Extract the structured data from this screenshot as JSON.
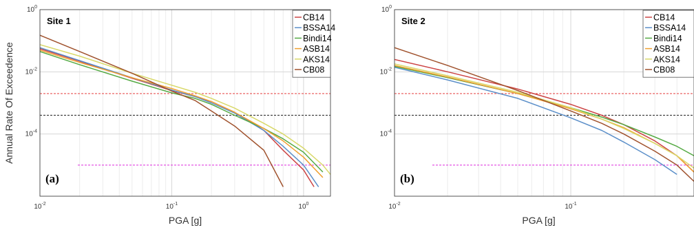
{
  "chart_data": [
    {
      "type": "line",
      "panel_label": "(a)",
      "title": "Site 1",
      "xlabel": "PGA [g]",
      "ylabel": "Annual Rate Of Exceedence",
      "x_scale": "log",
      "y_scale": "log",
      "xlim": [
        0.01,
        1.6
      ],
      "ylim": [
        1e-06,
        1
      ],
      "x_ticks": [
        "10^-2",
        "10^-1",
        "10^0"
      ],
      "y_ticks": [
        "10^-4",
        "10^-2",
        "10^0"
      ],
      "grid": true,
      "legend": "top-right",
      "series": [
        {
          "name": "CB14",
          "color": "#cc4444",
          "points": [
            [
              0.01,
              0.055
            ],
            [
              0.02,
              0.022
            ],
            [
              0.05,
              0.0062
            ],
            [
              0.1,
              0.0025
            ],
            [
              0.15,
              0.0016
            ],
            [
              0.2,
              0.0011
            ],
            [
              0.3,
              0.0005
            ],
            [
              0.5,
              0.00013
            ],
            [
              0.7,
              3e-05
            ],
            [
              1.0,
              7e-06
            ],
            [
              1.2,
              2e-06
            ]
          ]
        },
        {
          "name": "BSSA14",
          "color": "#5b8fc9",
          "points": [
            [
              0.01,
              0.06
            ],
            [
              0.02,
              0.023
            ],
            [
              0.05,
              0.0065
            ],
            [
              0.1,
              0.0026
            ],
            [
              0.15,
              0.0016
            ],
            [
              0.2,
              0.001
            ],
            [
              0.3,
              0.00047
            ],
            [
              0.5,
              0.00013
            ],
            [
              0.7,
              4e-05
            ],
            [
              1.0,
              1e-05
            ],
            [
              1.3,
              2e-06
            ]
          ]
        },
        {
          "name": "Bindi14",
          "color": "#55aa44",
          "points": [
            [
              0.01,
              0.045
            ],
            [
              0.02,
              0.017
            ],
            [
              0.05,
              0.005
            ],
            [
              0.1,
              0.0021
            ],
            [
              0.15,
              0.0014
            ],
            [
              0.2,
              0.0009
            ],
            [
              0.3,
              0.0004
            ],
            [
              0.5,
              0.00015
            ],
            [
              0.7,
              7e-05
            ],
            [
              1.0,
              2.6e-05
            ],
            [
              1.4,
              6e-06
            ]
          ]
        },
        {
          "name": "ASB14",
          "color": "#f0a030",
          "points": [
            [
              0.01,
              0.05
            ],
            [
              0.02,
              0.02
            ],
            [
              0.05,
              0.0065
            ],
            [
              0.1,
              0.0029
            ],
            [
              0.15,
              0.0017
            ],
            [
              0.2,
              0.0011
            ],
            [
              0.3,
              0.0005
            ],
            [
              0.5,
              0.00015
            ],
            [
              0.7,
              6e-05
            ],
            [
              1.0,
              1.8e-05
            ],
            [
              1.4,
              4e-06
            ]
          ]
        },
        {
          "name": "AKS14",
          "color": "#d9d96a",
          "points": [
            [
              0.01,
              0.075
            ],
            [
              0.02,
              0.032
            ],
            [
              0.05,
              0.009
            ],
            [
              0.1,
              0.0037
            ],
            [
              0.15,
              0.0022
            ],
            [
              0.2,
              0.0014
            ],
            [
              0.3,
              0.00068
            ],
            [
              0.5,
              0.00022
            ],
            [
              0.7,
              0.0001
            ],
            [
              1.0,
              3.5e-05
            ],
            [
              1.4,
              1e-05
            ],
            [
              1.6,
              5e-06
            ]
          ]
        },
        {
          "name": "CB08",
          "color": "#a0522d",
          "points": [
            [
              0.01,
              0.15
            ],
            [
              0.02,
              0.045
            ],
            [
              0.05,
              0.009
            ],
            [
              0.1,
              0.0024
            ],
            [
              0.15,
              0.0012
            ],
            [
              0.2,
              0.00055
            ],
            [
              0.3,
              0.00018
            ],
            [
              0.5,
              3e-05
            ],
            [
              0.7,
              2e-06
            ]
          ]
        }
      ],
      "reference_lines": [
        {
          "y": 0.002,
          "color": "#e85050"
        },
        {
          "y": 0.0004,
          "color": "#333333"
        },
        {
          "y": 1e-05,
          "color": "#e040e0"
        }
      ]
    },
    {
      "type": "line",
      "panel_label": "(b)",
      "title": "Site 2",
      "xlabel": "PGA [g]",
      "ylabel": "",
      "x_scale": "log",
      "y_scale": "log",
      "xlim": [
        0.01,
        0.5
      ],
      "ylim": [
        1e-06,
        1
      ],
      "x_ticks": [
        "10^-2",
        "10^-1"
      ],
      "y_ticks": [
        "10^-4",
        "10^-2",
        "10^0"
      ],
      "grid": true,
      "legend": "top-right",
      "series": [
        {
          "name": "CB14",
          "color": "#cc4444",
          "points": [
            [
              0.01,
              0.025
            ],
            [
              0.02,
              0.01
            ],
            [
              0.05,
              0.0028
            ],
            [
              0.1,
              0.0009
            ],
            [
              0.15,
              0.0004
            ],
            [
              0.2,
              0.0002
            ],
            [
              0.3,
              6e-05
            ],
            [
              0.4,
              2e-05
            ],
            [
              0.5,
              6e-06
            ]
          ]
        },
        {
          "name": "BSSA14",
          "color": "#5b8fc9",
          "points": [
            [
              0.01,
              0.014
            ],
            [
              0.02,
              0.0055
            ],
            [
              0.05,
              0.0014
            ],
            [
              0.1,
              0.00033
            ],
            [
              0.15,
              0.00013
            ],
            [
              0.2,
              5.5e-05
            ],
            [
              0.3,
              1.5e-05
            ],
            [
              0.4,
              5e-06
            ]
          ]
        },
        {
          "name": "Bindi14",
          "color": "#55aa44",
          "points": [
            [
              0.01,
              0.015
            ],
            [
              0.02,
              0.0065
            ],
            [
              0.05,
              0.002
            ],
            [
              0.1,
              0.0007
            ],
            [
              0.15,
              0.00035
            ],
            [
              0.2,
              0.0002
            ],
            [
              0.3,
              8e-05
            ],
            [
              0.4,
              4e-05
            ],
            [
              0.5,
              2e-05
            ]
          ]
        },
        {
          "name": "ASB14",
          "color": "#f0a030",
          "points": [
            [
              0.01,
              0.016
            ],
            [
              0.02,
              0.0068
            ],
            [
              0.05,
              0.002
            ],
            [
              0.1,
              0.00065
            ],
            [
              0.15,
              0.0003
            ],
            [
              0.2,
              0.00016
            ],
            [
              0.3,
              5e-05
            ],
            [
              0.4,
              2e-05
            ],
            [
              0.5,
              6e-06
            ]
          ]
        },
        {
          "name": "AKS14",
          "color": "#d9d96a",
          "points": [
            [
              0.01,
              0.018
            ],
            [
              0.02,
              0.0075
            ],
            [
              0.05,
              0.0022
            ],
            [
              0.1,
              0.0007
            ],
            [
              0.15,
              0.0003
            ],
            [
              0.2,
              0.00015
            ],
            [
              0.3,
              5e-05
            ],
            [
              0.4,
              2e-05
            ],
            [
              0.5,
              8e-06
            ]
          ]
        },
        {
          "name": "CB08",
          "color": "#a0522d",
          "points": [
            [
              0.01,
              0.06
            ],
            [
              0.02,
              0.016
            ],
            [
              0.05,
              0.0025
            ],
            [
              0.1,
              0.00055
            ],
            [
              0.15,
              0.00022
            ],
            [
              0.2,
              0.0001
            ],
            [
              0.3,
              2.8e-05
            ],
            [
              0.4,
              1e-05
            ],
            [
              0.5,
              3e-06
            ]
          ]
        }
      ],
      "reference_lines": [
        {
          "y": 0.002,
          "color": "#e85050"
        },
        {
          "y": 0.0004,
          "color": "#333333"
        },
        {
          "y": 1e-05,
          "color": "#e040e0"
        }
      ]
    }
  ]
}
